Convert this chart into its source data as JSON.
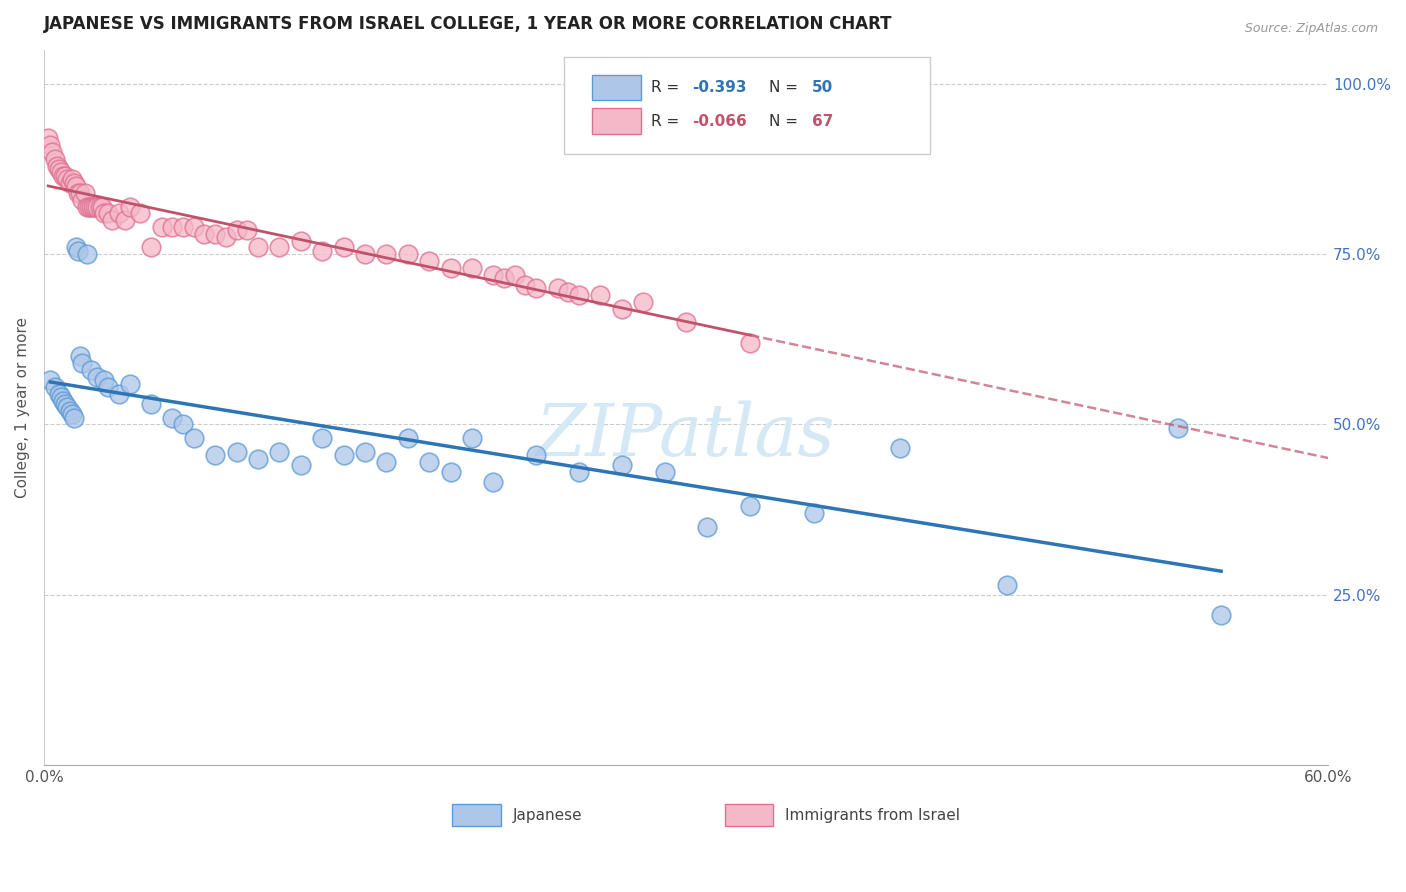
{
  "title": "JAPANESE VS IMMIGRANTS FROM ISRAEL COLLEGE, 1 YEAR OR MORE CORRELATION CHART",
  "source": "Source: ZipAtlas.com",
  "ylabel": "College, 1 year or more",
  "xlim": [
    0.0,
    0.6
  ],
  "ylim": [
    0.0,
    1.05
  ],
  "japanese_R": "-0.393",
  "japanese_N": "50",
  "israel_R": "-0.066",
  "israel_N": "67",
  "japanese_color": "#aec6e8",
  "japanese_edge_color": "#5b9bd5",
  "japanese_line_color": "#2e75b6",
  "israel_color": "#f4b8c8",
  "israel_edge_color": "#e07090",
  "israel_line_color": "#c0526a",
  "watermark_color": "#d5e8f5",
  "japanese_x": [
    0.003,
    0.005,
    0.007,
    0.008,
    0.009,
    0.01,
    0.011,
    0.012,
    0.013,
    0.014,
    0.015,
    0.016,
    0.017,
    0.018,
    0.02,
    0.022,
    0.025,
    0.028,
    0.03,
    0.035,
    0.04,
    0.05,
    0.06,
    0.065,
    0.07,
    0.08,
    0.09,
    0.1,
    0.11,
    0.12,
    0.13,
    0.14,
    0.15,
    0.16,
    0.17,
    0.18,
    0.19,
    0.2,
    0.21,
    0.23,
    0.25,
    0.27,
    0.29,
    0.31,
    0.33,
    0.36,
    0.4,
    0.45,
    0.53,
    0.55
  ],
  "japanese_y": [
    0.565,
    0.555,
    0.545,
    0.54,
    0.535,
    0.53,
    0.525,
    0.52,
    0.515,
    0.51,
    0.76,
    0.755,
    0.6,
    0.59,
    0.75,
    0.58,
    0.57,
    0.565,
    0.555,
    0.545,
    0.56,
    0.53,
    0.51,
    0.5,
    0.48,
    0.455,
    0.46,
    0.45,
    0.46,
    0.44,
    0.48,
    0.455,
    0.46,
    0.445,
    0.48,
    0.445,
    0.43,
    0.48,
    0.415,
    0.455,
    0.43,
    0.44,
    0.43,
    0.35,
    0.38,
    0.37,
    0.465,
    0.265,
    0.495,
    0.22
  ],
  "israel_x": [
    0.002,
    0.003,
    0.004,
    0.005,
    0.006,
    0.007,
    0.008,
    0.009,
    0.01,
    0.011,
    0.012,
    0.013,
    0.014,
    0.015,
    0.016,
    0.017,
    0.018,
    0.019,
    0.02,
    0.021,
    0.022,
    0.023,
    0.024,
    0.025,
    0.026,
    0.027,
    0.028,
    0.03,
    0.032,
    0.035,
    0.038,
    0.04,
    0.045,
    0.05,
    0.055,
    0.06,
    0.065,
    0.07,
    0.075,
    0.08,
    0.085,
    0.09,
    0.095,
    0.1,
    0.11,
    0.12,
    0.13,
    0.14,
    0.15,
    0.16,
    0.17,
    0.18,
    0.19,
    0.2,
    0.21,
    0.215,
    0.22,
    0.225,
    0.23,
    0.24,
    0.245,
    0.25,
    0.26,
    0.27,
    0.28,
    0.3,
    0.33
  ],
  "israel_y": [
    0.92,
    0.91,
    0.9,
    0.89,
    0.88,
    0.875,
    0.87,
    0.865,
    0.865,
    0.86,
    0.855,
    0.86,
    0.855,
    0.85,
    0.84,
    0.84,
    0.83,
    0.84,
    0.82,
    0.82,
    0.82,
    0.82,
    0.82,
    0.82,
    0.82,
    0.82,
    0.81,
    0.81,
    0.8,
    0.81,
    0.8,
    0.82,
    0.81,
    0.76,
    0.79,
    0.79,
    0.79,
    0.79,
    0.78,
    0.78,
    0.775,
    0.785,
    0.785,
    0.76,
    0.76,
    0.77,
    0.755,
    0.76,
    0.75,
    0.75,
    0.75,
    0.74,
    0.73,
    0.73,
    0.72,
    0.715,
    0.72,
    0.705,
    0.7,
    0.7,
    0.695,
    0.69,
    0.69,
    0.67,
    0.68,
    0.65,
    0.62
  ]
}
